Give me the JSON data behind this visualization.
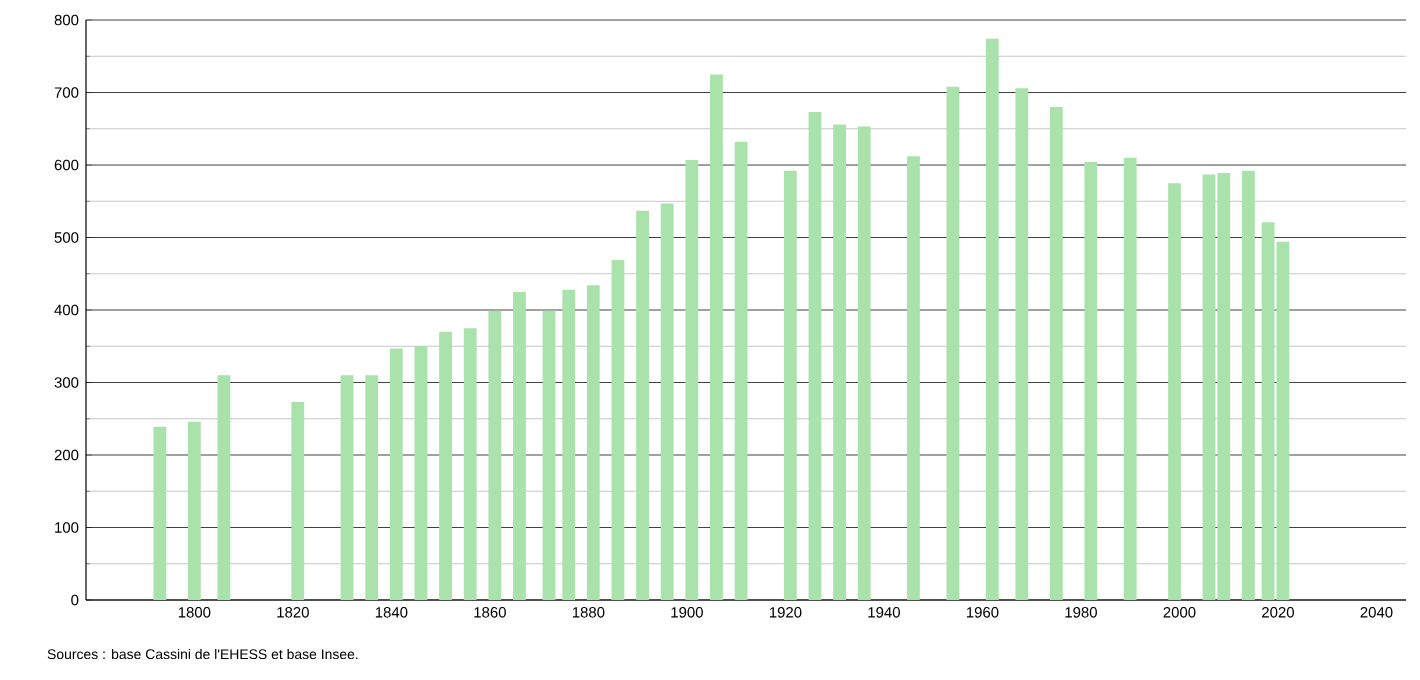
{
  "chart_data": {
    "type": "bar",
    "color": "#a9e2ab",
    "x": [
      1793,
      1800,
      1806,
      1821,
      1831,
      1836,
      1841,
      1846,
      1851,
      1856,
      1861,
      1866,
      1872,
      1876,
      1881,
      1886,
      1891,
      1896,
      1901,
      1906,
      1911,
      1921,
      1926,
      1931,
      1936,
      1946,
      1954,
      1962,
      1968,
      1975,
      1982,
      1990,
      1999,
      2006,
      2009,
      2014,
      2018,
      2021
    ],
    "values": [
      239,
      246,
      310,
      273,
      310,
      310,
      347,
      350,
      370,
      375,
      399,
      425,
      399,
      428,
      434,
      469,
      537,
      547,
      607,
      725,
      632,
      592,
      673,
      656,
      653,
      612,
      708,
      774,
      706,
      680,
      604,
      610,
      575,
      587,
      589,
      592,
      521,
      494
    ],
    "xlim": [
      1778,
      2046
    ],
    "xticks": [
      1800,
      1820,
      1840,
      1860,
      1880,
      1900,
      1920,
      1940,
      1960,
      1980,
      2000,
      2020,
      2040
    ],
    "ylim": [
      0,
      800
    ],
    "yticks": [
      0,
      {
        "value": 50,
        "label": null
      },
      100,
      {
        "value": 150,
        "label": null
      },
      200,
      {
        "value": 250,
        "label": null
      },
      300,
      {
        "value": 350,
        "label": null
      },
      400,
      {
        "value": 450,
        "label": null
      },
      500,
      {
        "value": 550,
        "label": null
      },
      600,
      {
        "value": 650,
        "label": null
      },
      700,
      {
        "value": 750,
        "label": null
      },
      800
    ],
    "grid": "y",
    "annotations": [
      "Sources : base Cassini de l'EHESS et base Insee."
    ]
  }
}
